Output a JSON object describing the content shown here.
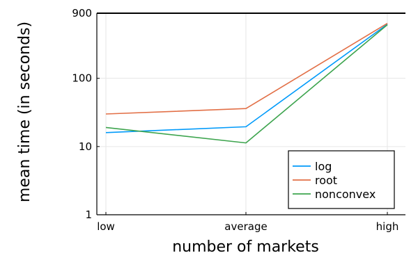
{
  "chart_data": {
    "type": "line",
    "title": "",
    "xlabel": "number of markets",
    "ylabel": "mean time (in seconds)",
    "categories": [
      "low",
      "average",
      "high"
    ],
    "y_scale": "log",
    "ylim": [
      1,
      900
    ],
    "yticks": [
      {
        "value": 1,
        "label": "1"
      },
      {
        "value": 10,
        "label": "10"
      },
      {
        "value": 100,
        "label": "100"
      },
      {
        "value": 900,
        "label": "900"
      }
    ],
    "grid": true,
    "legend_position": "bottom-right",
    "series": [
      {
        "name": "log",
        "color": "#009AFA",
        "values": [
          16,
          19.5,
          620
        ]
      },
      {
        "name": "root",
        "color": "#E26F46",
        "values": [
          30,
          36,
          640
        ]
      },
      {
        "name": "nonconvex",
        "color": "#3DA44E",
        "values": [
          19,
          11.3,
          610
        ]
      }
    ]
  }
}
